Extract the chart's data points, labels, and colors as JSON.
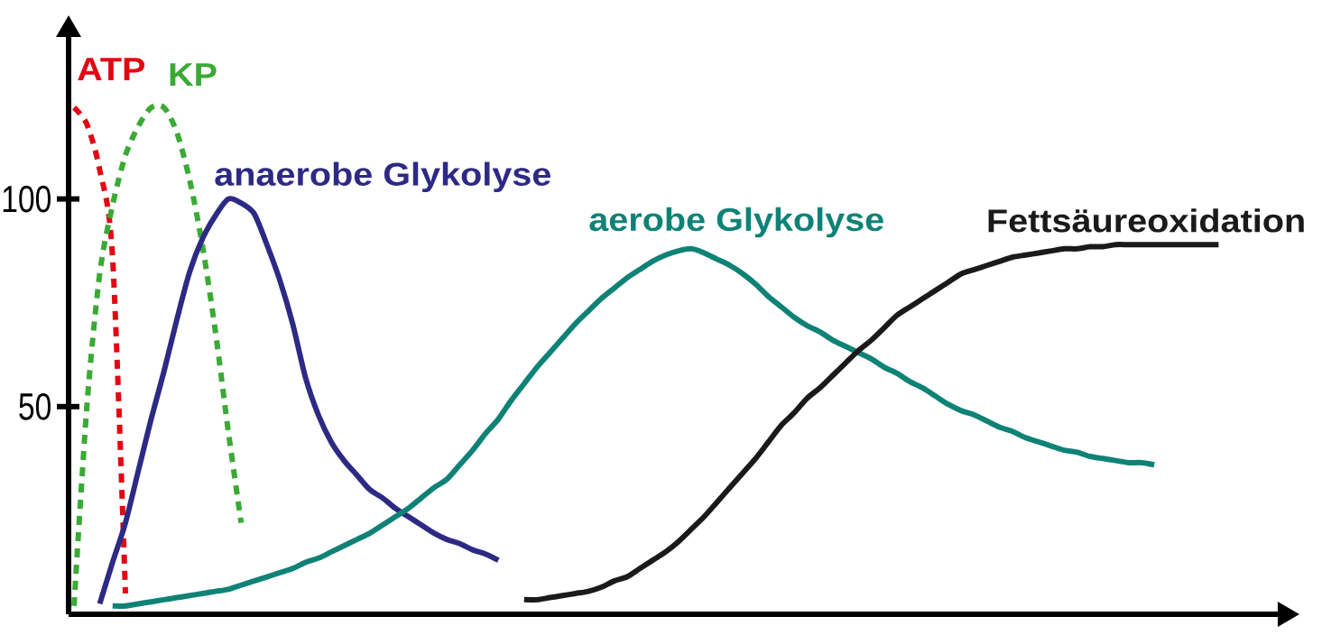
{
  "chart_data": {
    "type": "line",
    "ylim": [
      0,
      139
    ],
    "yticks": [
      50,
      100
    ],
    "tick_labels": "y",
    "categories": [
      null,
      null,
      null,
      null,
      null,
      null,
      null,
      null,
      null,
      null,
      null,
      null,
      null,
      null,
      null,
      null,
      null,
      null,
      null,
      null,
      null,
      null,
      null,
      null,
      null,
      null,
      null,
      null,
      null,
      null,
      null,
      null,
      null,
      null,
      null,
      null,
      null,
      null,
      null,
      null,
      null,
      null,
      null,
      null,
      null,
      null,
      null,
      null,
      null,
      null,
      null,
      null,
      null,
      null,
      null,
      null,
      null,
      null,
      null,
      null,
      null,
      null,
      null,
      null,
      null,
      null,
      null,
      null,
      null,
      null,
      null,
      null,
      null,
      null,
      null,
      null,
      null,
      null,
      null,
      null,
      null,
      null,
      null,
      null,
      null,
      null,
      null,
      null,
      null,
      null
    ],
    "series": [
      {
        "name": "ATP",
        "color": "#e30613",
        "line_style": "dotted",
        "values": [
          122,
          118,
          107,
          86,
          5,
          null,
          null,
          null,
          null,
          null,
          null,
          null,
          null,
          null,
          null,
          null,
          null,
          null,
          null,
          null,
          null,
          null,
          null,
          null,
          null,
          null,
          null,
          null,
          null,
          null,
          null,
          null,
          null,
          null,
          null,
          null,
          null,
          null,
          null,
          null,
          null,
          null,
          null,
          null,
          null,
          null,
          null,
          null,
          null,
          null,
          null,
          null,
          null,
          null,
          null,
          null,
          null,
          null,
          null,
          null,
          null,
          null,
          null,
          null,
          null,
          null,
          null,
          null,
          null,
          null,
          null,
          null,
          null,
          null,
          null,
          null,
          null,
          null,
          null,
          null,
          null,
          null,
          null,
          null,
          null,
          null,
          null,
          null,
          null,
          null
        ]
      },
      {
        "name": "KP",
        "color": "#3aaa35",
        "line_style": "dotted",
        "values": [
          2,
          50,
          82,
          98.5,
          110.5,
          117.5,
          122,
          122,
          116,
          104.5,
          88.5,
          68,
          44,
          22,
          null,
          null,
          null,
          null,
          null,
          null,
          null,
          null,
          null,
          null,
          null,
          null,
          null,
          null,
          null,
          null,
          null,
          null,
          null,
          null,
          null,
          null,
          null,
          null,
          null,
          null,
          null,
          null,
          null,
          null,
          null,
          null,
          null,
          null,
          null,
          null,
          null,
          null,
          null,
          null,
          null,
          null,
          null,
          null,
          null,
          null,
          null,
          null,
          null,
          null,
          null,
          null,
          null,
          null,
          null,
          null,
          null,
          null,
          null,
          null,
          null,
          null,
          null,
          null,
          null,
          null,
          null,
          null,
          null,
          null,
          null,
          null,
          null,
          null,
          null,
          null
        ]
      },
      {
        "name": "anaerobe Glykolyse",
        "color": "#2d2a85",
        "line_style": "solid",
        "values": [
          null,
          null,
          2.5,
          12.5,
          22,
          34.5,
          47,
          58.5,
          71,
          82.5,
          90.5,
          96,
          100,
          99,
          96.5,
          89,
          80.5,
          70,
          57,
          48,
          41.5,
          37,
          33.5,
          30,
          28,
          25.5,
          23.5,
          21.5,
          19.5,
          18,
          17,
          15.5,
          14.5,
          13,
          null,
          null,
          null,
          null,
          null,
          null,
          null,
          null,
          null,
          null,
          null,
          null,
          null,
          null,
          null,
          null,
          null,
          null,
          null,
          null,
          null,
          null,
          null,
          null,
          null,
          null,
          null,
          null,
          null,
          null,
          null,
          null,
          null,
          null,
          null,
          null,
          null,
          null,
          null,
          null,
          null,
          null,
          null,
          null,
          null,
          null,
          null,
          null,
          null,
          null,
          null,
          null,
          null,
          null,
          null,
          null
        ]
      },
      {
        "name": "aerobe Glykolyse",
        "color": "#0f8276",
        "line_style": "solid",
        "values": [
          null,
          null,
          null,
          2,
          2,
          2.5,
          3,
          3.5,
          4,
          4.5,
          5,
          5.5,
          6,
          7,
          8,
          9,
          10,
          11,
          12.5,
          13.5,
          15,
          16.5,
          18,
          19.5,
          21.5,
          23.5,
          25.5,
          28,
          30.5,
          32.5,
          36,
          39.5,
          43.5,
          47,
          51.5,
          55.5,
          59.5,
          63,
          66.5,
          70,
          73,
          76,
          78.5,
          81,
          83,
          85,
          86.5,
          87.5,
          88,
          87,
          85.5,
          84,
          82,
          79.5,
          76.5,
          74,
          71.5,
          69.5,
          68,
          66,
          64.5,
          63,
          61.5,
          59.5,
          58,
          56,
          54.5,
          52.5,
          50.5,
          49,
          48,
          46.5,
          45,
          44,
          42.5,
          41.5,
          40.5,
          39.5,
          39,
          38,
          37.5,
          37,
          36.5,
          36.5,
          36,
          null,
          null,
          null,
          null,
          null
        ]
      },
      {
        "name": "Fettsäureoxidation",
        "color": "#1a1a1a",
        "line_style": "solid",
        "values": [
          null,
          null,
          null,
          null,
          null,
          null,
          null,
          null,
          null,
          null,
          null,
          null,
          null,
          null,
          null,
          null,
          null,
          null,
          null,
          null,
          null,
          null,
          null,
          null,
          null,
          null,
          null,
          null,
          null,
          null,
          null,
          null,
          null,
          null,
          null,
          3.5,
          3.5,
          4,
          4.5,
          5,
          5.5,
          6.5,
          8,
          9,
          11,
          13,
          15,
          17.5,
          20.5,
          23.5,
          27,
          30.5,
          34,
          37.5,
          41.5,
          45.5,
          48.5,
          52,
          54.5,
          57.5,
          60.5,
          63.5,
          66,
          69,
          72,
          74,
          76,
          78,
          80,
          82,
          83,
          84,
          85,
          86,
          86.5,
          87,
          87.5,
          88,
          88,
          88.5,
          88.5,
          89,
          89,
          89,
          89,
          89,
          89,
          89,
          89,
          89
        ]
      }
    ]
  }
}
